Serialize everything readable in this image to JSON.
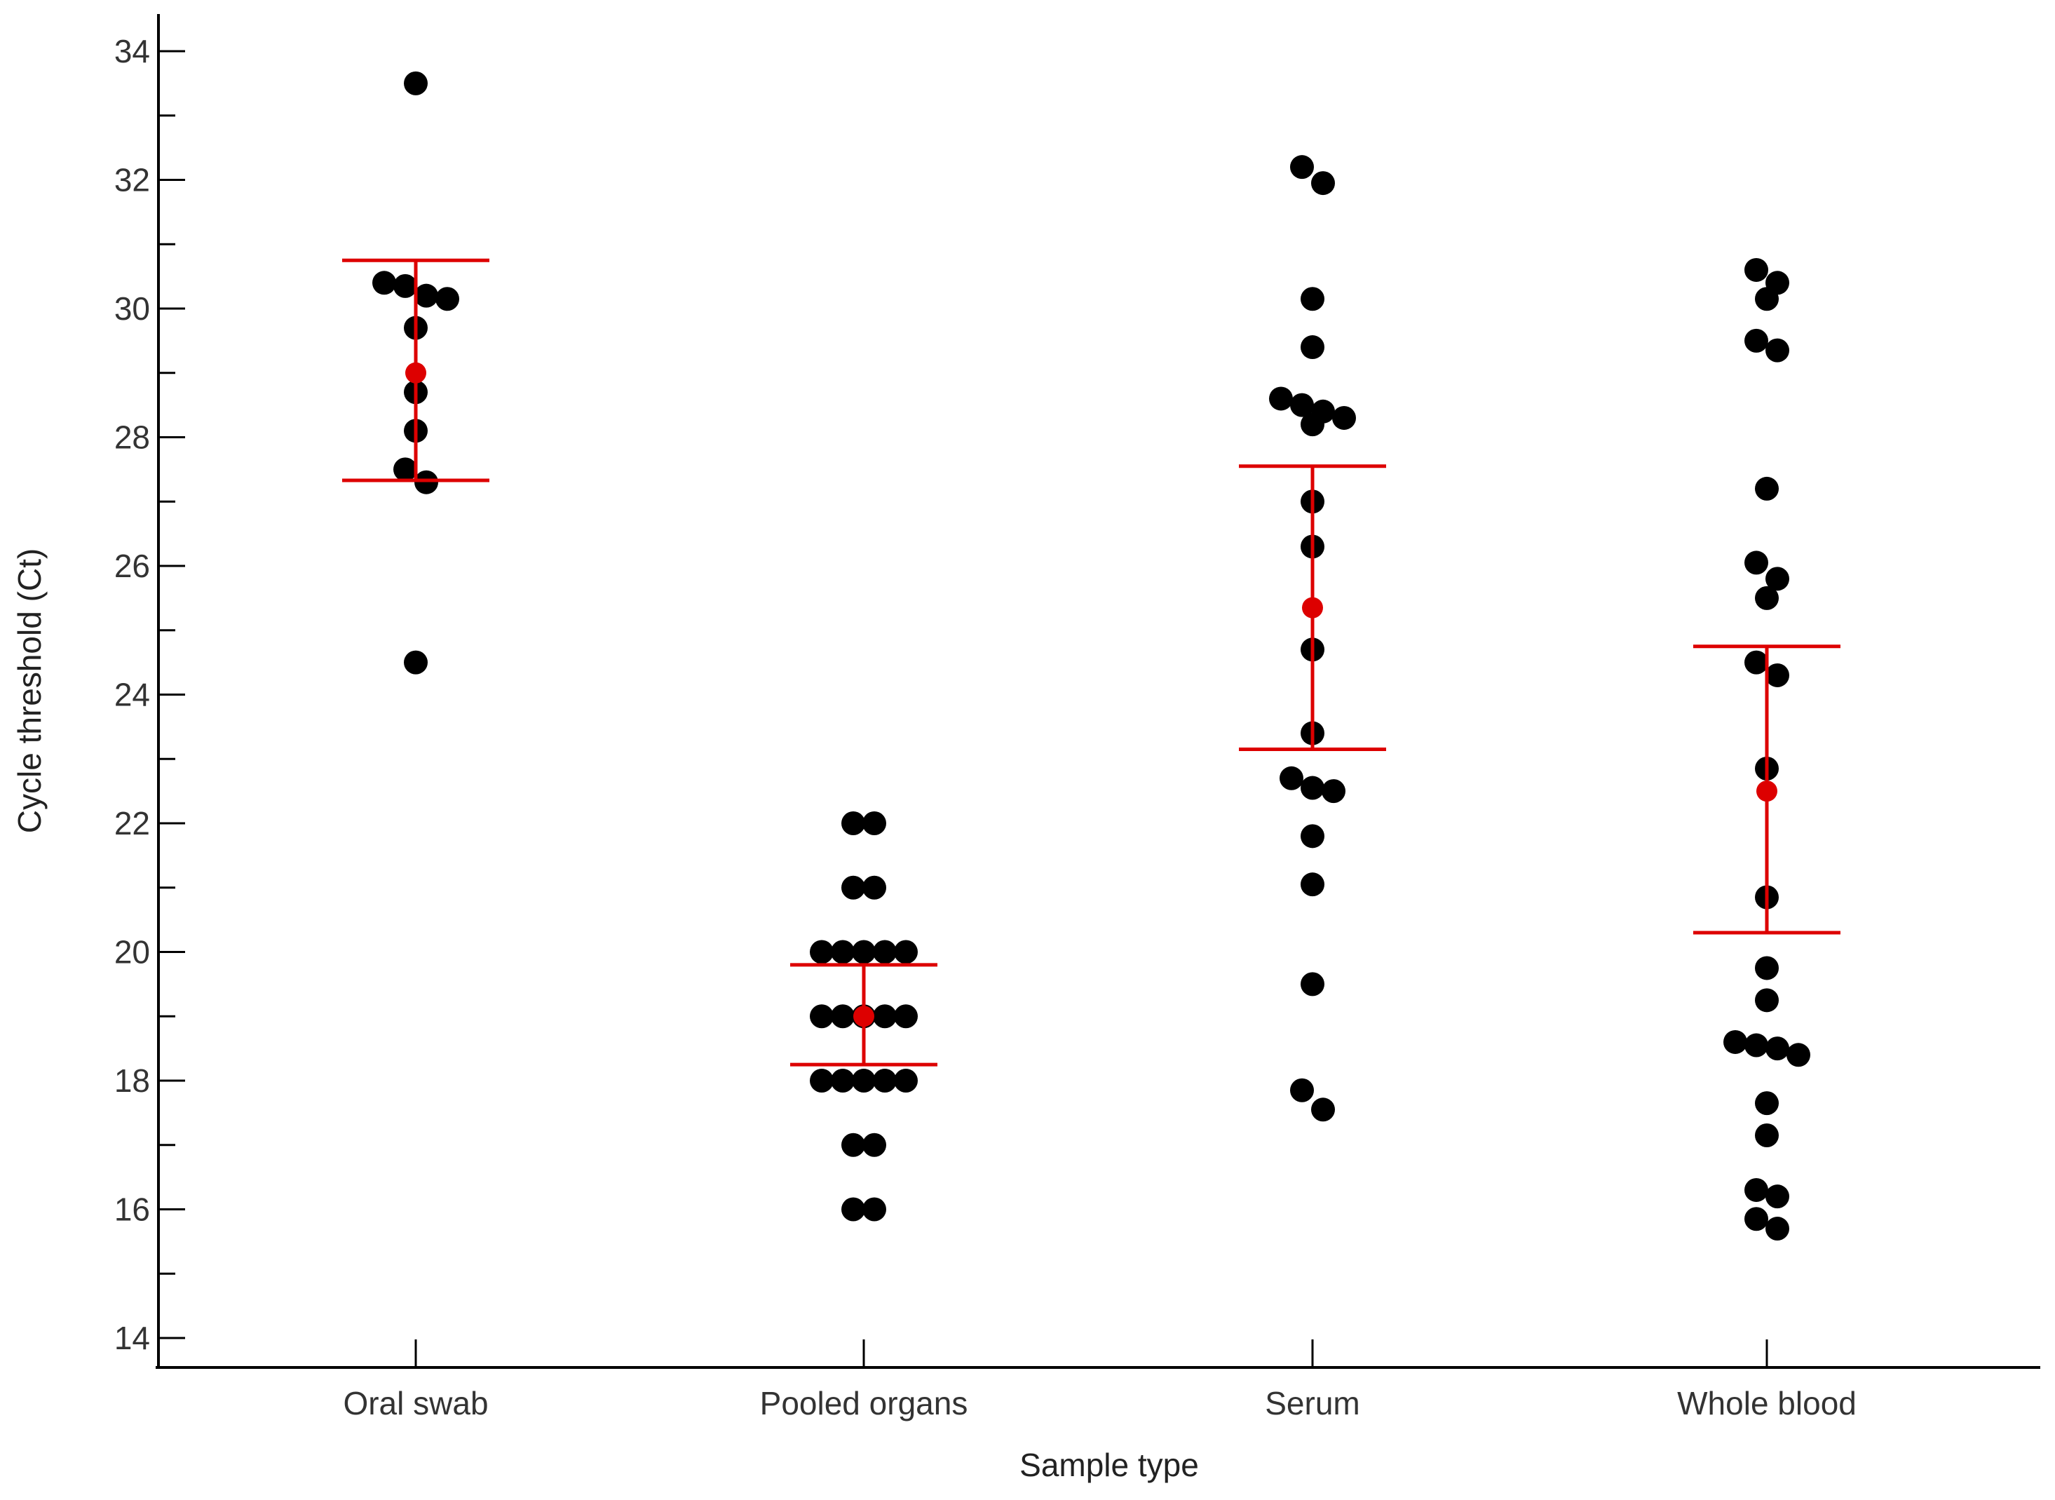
{
  "chart_data": {
    "type": "scatter",
    "subtype": "dot-plot-with-mean-and-interval",
    "title": "",
    "xlabel": "Sample type",
    "ylabel": "Cycle threshold (Ct)",
    "ylim": [
      14,
      34
    ],
    "yticks": [
      "14",
      "16",
      "18",
      "20",
      "22",
      "24",
      "26",
      "28",
      "30",
      "32",
      "34"
    ],
    "y_minor_step": 1,
    "grid": false,
    "colors": {
      "points": "#000000",
      "summary": "#dd0000",
      "axis": "#000000"
    },
    "categories": [
      "Oral swab",
      "Pooled organs",
      "Serum",
      "Whole blood"
    ],
    "groups": [
      {
        "name": "Oral swab",
        "values": [
          33.5,
          30.4,
          30.35,
          30.2,
          30.15,
          29.7,
          28.7,
          28.1,
          27.5,
          27.3,
          24.5
        ],
        "mean": 29.0,
        "lower": 27.33,
        "upper": 30.75
      },
      {
        "name": "Pooled organs",
        "values": [
          22,
          22,
          21,
          21,
          20,
          20,
          20,
          20,
          20,
          19,
          19,
          19,
          19,
          19,
          18,
          18,
          18,
          18,
          18,
          17,
          17,
          16,
          16
        ],
        "mean": 19.0,
        "lower": 18.25,
        "upper": 19.8
      },
      {
        "name": "Serum",
        "values": [
          32.2,
          31.95,
          30.15,
          29.4,
          28.6,
          28.5,
          28.4,
          28.3,
          28.2,
          27.0,
          26.3,
          24.7,
          23.4,
          22.7,
          22.55,
          22.5,
          21.8,
          21.05,
          19.5,
          17.85,
          17.55
        ],
        "mean": 25.35,
        "lower": 23.15,
        "upper": 27.55
      },
      {
        "name": "Whole blood",
        "values": [
          30.6,
          30.4,
          30.15,
          29.5,
          29.35,
          27.2,
          26.05,
          25.8,
          25.5,
          24.5,
          24.3,
          22.85,
          20.85,
          19.75,
          19.25,
          18.6,
          18.55,
          18.5,
          18.4,
          17.65,
          17.15,
          16.3,
          16.2,
          15.85,
          15.7
        ],
        "mean": 22.5,
        "lower": 20.3,
        "upper": 24.75
      }
    ]
  }
}
